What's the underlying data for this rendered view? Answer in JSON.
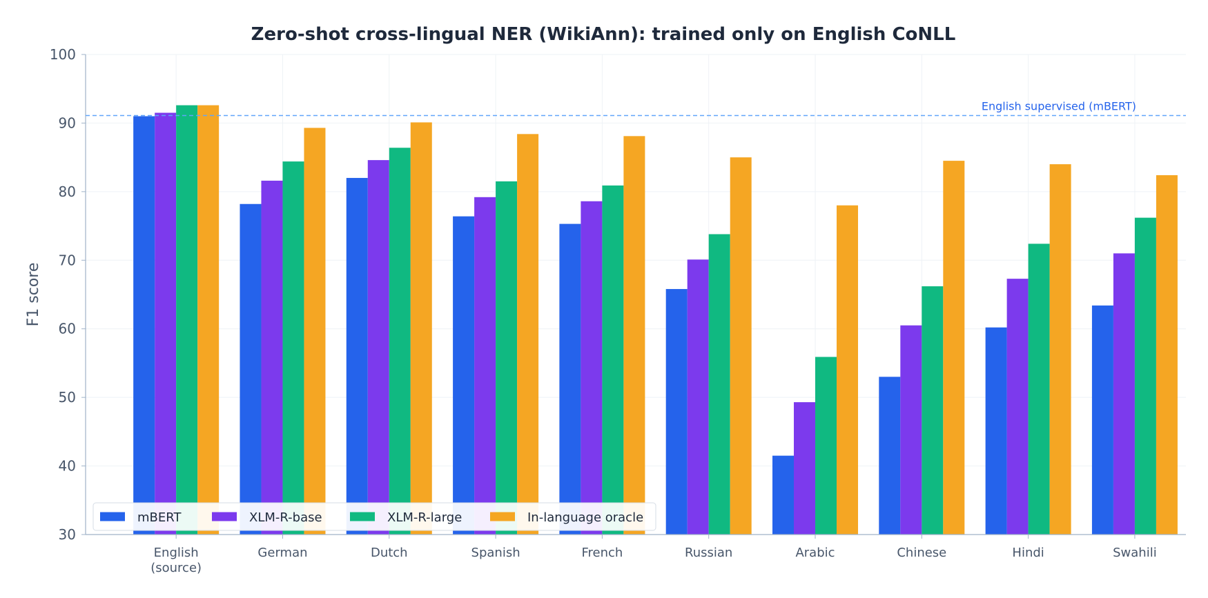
{
  "chart_data": {
    "type": "bar",
    "title": "Zero-shot cross-lingual NER (WikiAnn): trained only on English CoNLL",
    "ylabel": "F1 score",
    "xlabel": "",
    "ylim": [
      30,
      100
    ],
    "yticks": [
      30,
      40,
      50,
      60,
      70,
      80,
      90,
      100
    ],
    "categories": [
      "English\n(source)",
      "German",
      "Dutch",
      "Spanish",
      "French",
      "Russian",
      "Arabic",
      "Chinese",
      "Hindi",
      "Swahili"
    ],
    "series": [
      {
        "name": "mBERT",
        "color": "#2563eb",
        "values": [
          91.0,
          78.2,
          82.0,
          76.4,
          75.3,
          65.8,
          41.5,
          53.0,
          60.2,
          63.4
        ]
      },
      {
        "name": "XLM-R-base",
        "color": "#7c3aed",
        "values": [
          91.5,
          81.6,
          84.6,
          79.2,
          78.6,
          70.1,
          49.3,
          60.5,
          67.3,
          71.0
        ]
      },
      {
        "name": "XLM-R-large",
        "color": "#10b981",
        "values": [
          92.6,
          84.4,
          86.4,
          81.5,
          80.9,
          73.8,
          55.9,
          66.2,
          72.4,
          76.2
        ]
      },
      {
        "name": "In-language oracle",
        "color": "#f5a623",
        "values": [
          92.6,
          89.3,
          90.1,
          88.4,
          88.1,
          85.0,
          78.0,
          84.5,
          84.0,
          82.4
        ]
      }
    ],
    "reference_line": {
      "label": "English supervised (mBERT)",
      "value": 91.1,
      "color": "#2563eb"
    },
    "grid": true,
    "legend_position": "lower-left"
  }
}
